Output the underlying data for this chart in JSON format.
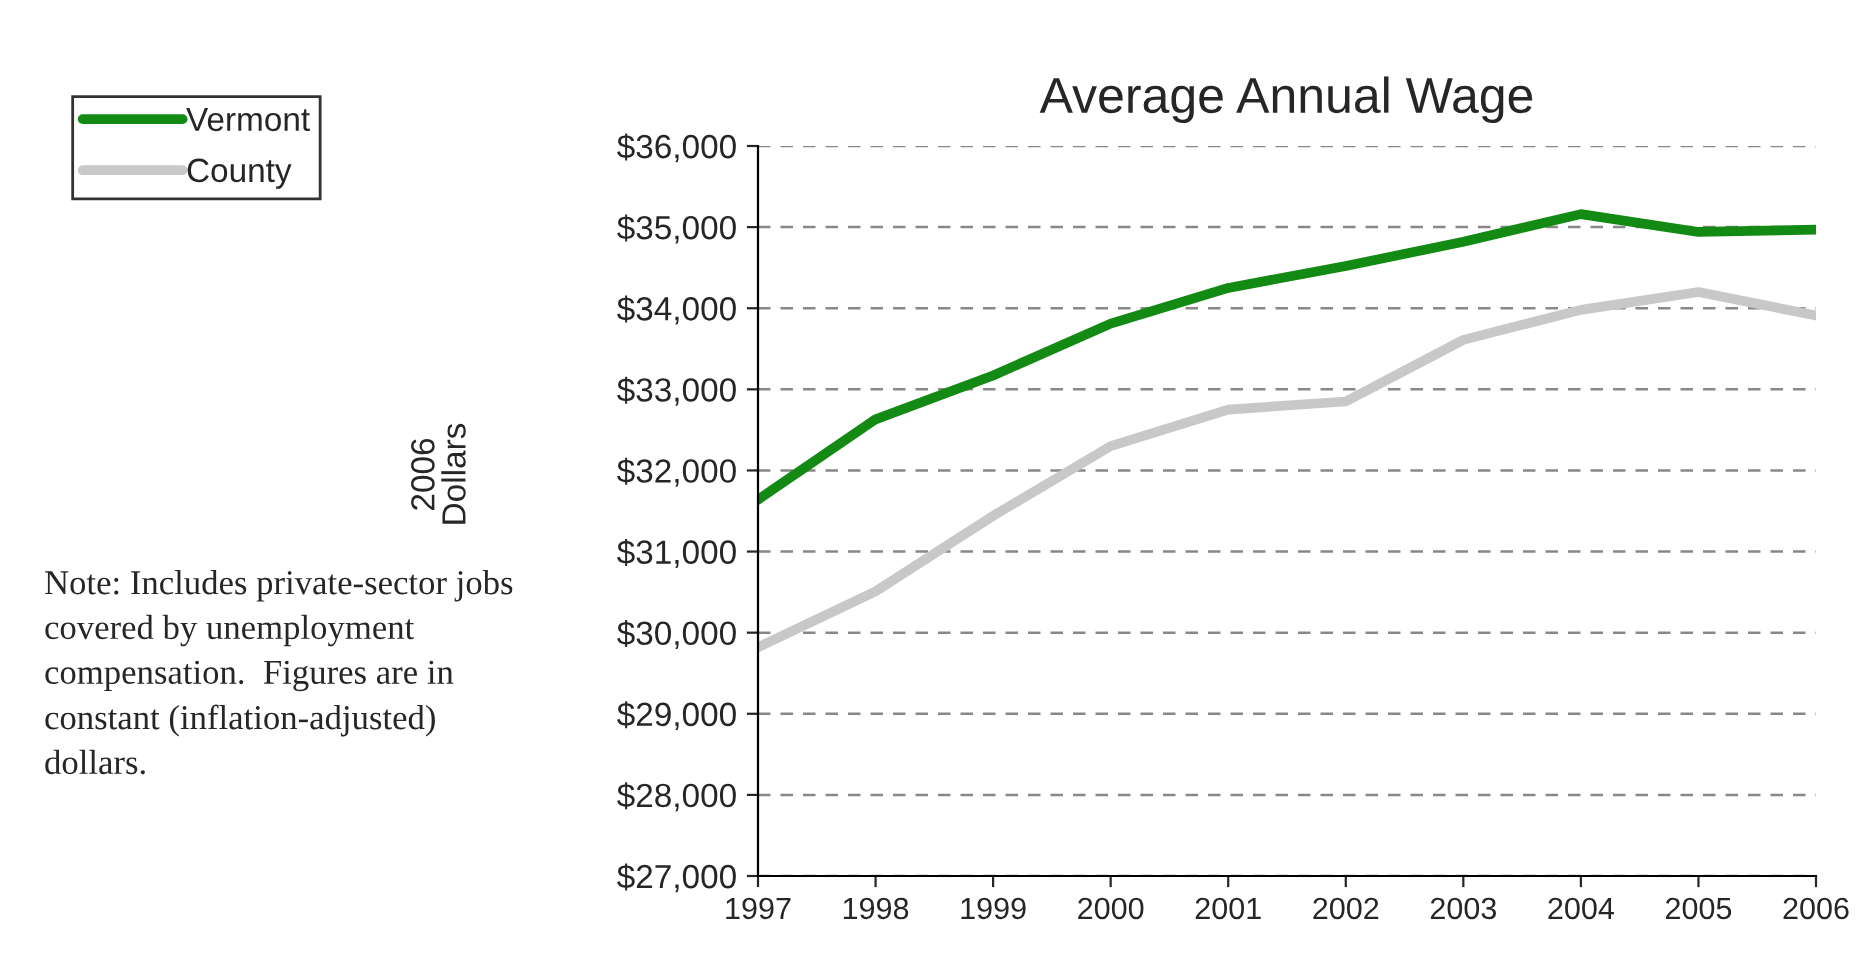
{
  "chart_data": {
    "type": "line",
    "title": "Average Annual Wage",
    "ylabel": "2006 Dollars",
    "x": [
      1997,
      1998,
      1999,
      2000,
      2001,
      2002,
      2003,
      2004,
      2005,
      2006
    ],
    "series": [
      {
        "name": "Vermont",
        "color": "#138a13",
        "values": [
          31640,
          32630,
          33170,
          33810,
          34250,
          34520,
          34820,
          35160,
          34940,
          34970
        ]
      },
      {
        "name": "County",
        "color": "#c8c8c8",
        "values": [
          29820,
          30510,
          31440,
          32300,
          32750,
          32850,
          33610,
          33980,
          34200,
          33910
        ]
      }
    ],
    "xlim": [
      1997,
      2006
    ],
    "xticks": [
      1997,
      1998,
      1999,
      2000,
      2001,
      2002,
      2003,
      2004,
      2005,
      2006
    ],
    "ylim": [
      27000,
      36000
    ],
    "yticks": [
      {
        "value": 27000,
        "label": "$27,000"
      },
      {
        "value": 28000,
        "label": "$28,000"
      },
      {
        "value": 29000,
        "label": "$29,000"
      },
      {
        "value": 30000,
        "label": "$30,000"
      },
      {
        "value": 31000,
        "label": "$31,000"
      },
      {
        "value": 32000,
        "label": "$32,000"
      },
      {
        "value": 33000,
        "label": "$33,000"
      },
      {
        "value": 34000,
        "label": "$34,000"
      },
      {
        "value": 35000,
        "label": "$35,000"
      },
      {
        "value": 36000,
        "label": "$36,000"
      }
    ],
    "grid": "y",
    "legend": "top left",
    "marker": "none",
    "line_style": "solid",
    "annotations": [
      "Note: Includes private-sector jobs covered by unemployment compensation.  Figures are in constant (inflation-adjusted) dollars."
    ]
  }
}
